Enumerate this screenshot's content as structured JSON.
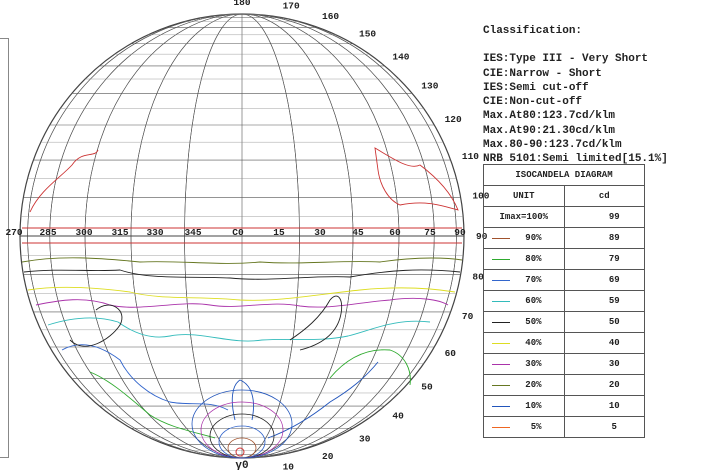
{
  "classification": {
    "title": "Classification:",
    "lines": [
      "IES:Type III - Very Short",
      "CIE:Narrow - Short",
      "IES:Semi cut-off",
      "CIE:Non-cut-off",
      "Max.At80:123.7cd/klm",
      "Max.At90:21.30cd/klm",
      "Max.80-90:123.7cd/klm",
      "NRB 5101:Semi limited[15.1%]"
    ]
  },
  "iso_table": {
    "title": "ISOCANDELA DIAGRAM",
    "unit_label": "UNIT",
    "unit_value": "cd",
    "imax_label": "Imax=100%",
    "imax_value": "99",
    "levels": [
      {
        "pct": "90%",
        "value": "89",
        "color": "#a0522d"
      },
      {
        "pct": "80%",
        "value": "79",
        "color": "#2eaa2e"
      },
      {
        "pct": "70%",
        "value": "69",
        "color": "#3366cc"
      },
      {
        "pct": "60%",
        "value": "59",
        "color": "#33bbbb"
      },
      {
        "pct": "50%",
        "value": "50",
        "color": "#222222"
      },
      {
        "pct": "40%",
        "value": "40",
        "color": "#dddd22"
      },
      {
        "pct": "30%",
        "value": "30",
        "color": "#aa33aa"
      },
      {
        "pct": "20%",
        "value": "20",
        "color": "#667722"
      },
      {
        "pct": "10%",
        "value": "10",
        "color": "#2255bb"
      },
      {
        "pct": "5%",
        "value": "5",
        "color": "#ee6622"
      }
    ]
  },
  "diagram": {
    "horizontal_labels": [
      "270",
      "285",
      "300",
      "315",
      "330",
      "345",
      "C0",
      "15",
      "30",
      "45",
      "60",
      "75",
      "90"
    ],
    "gamma_labels_right": [
      "180",
      "170",
      "160",
      "150",
      "140",
      "130",
      "120",
      "110",
      "100",
      "90",
      "80",
      "70",
      "60",
      "50",
      "40",
      "30",
      "20",
      "10"
    ],
    "bottom_label": "γ0",
    "accent_color": "#cc3333"
  }
}
